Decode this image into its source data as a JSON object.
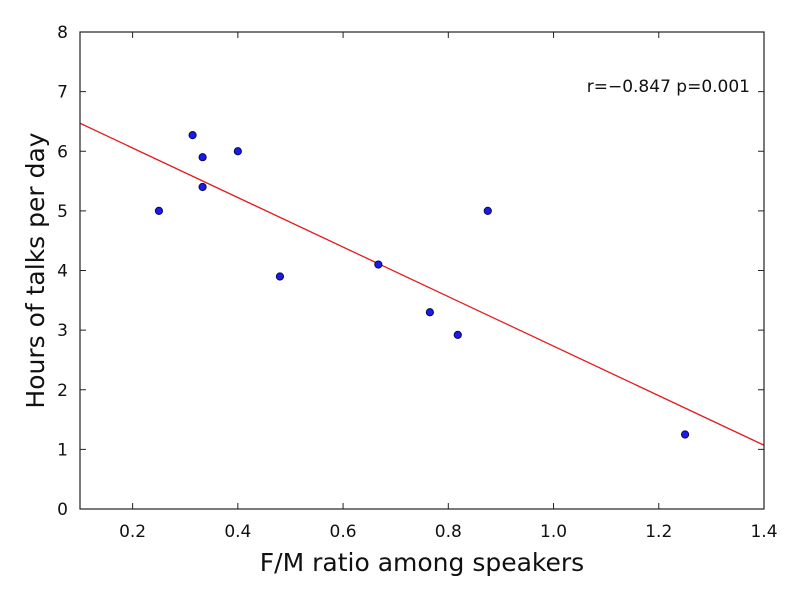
{
  "chart_data": {
    "type": "scatter",
    "title": "",
    "xlabel": "F/M ratio among speakers",
    "ylabel": "Hours of talks per day",
    "xlim": [
      0.1,
      1.4
    ],
    "ylim": [
      0,
      8
    ],
    "xticks": [
      0.2,
      0.4,
      0.6,
      0.8,
      1.0,
      1.2,
      1.4
    ],
    "xtick_labels": [
      "0.2",
      "0.4",
      "0.6",
      "0.8",
      "1.0",
      "1.2",
      "1.4"
    ],
    "yticks": [
      0,
      1,
      2,
      3,
      4,
      5,
      6,
      7,
      8
    ],
    "ytick_labels": [
      "0",
      "1",
      "2",
      "3",
      "4",
      "5",
      "6",
      "7",
      "8"
    ],
    "grid": false,
    "legend": "none",
    "series": [
      {
        "points": [
          {
            "x": 0.25,
            "y": 5.0
          },
          {
            "x": 0.314,
            "y": 6.27
          },
          {
            "x": 0.333,
            "y": 5.9
          },
          {
            "x": 0.333,
            "y": 5.4
          },
          {
            "x": 0.4,
            "y": 6.0
          },
          {
            "x": 0.48,
            "y": 3.9
          },
          {
            "x": 0.667,
            "y": 4.1
          },
          {
            "x": 0.765,
            "y": 3.3
          },
          {
            "x": 0.818,
            "y": 2.92
          },
          {
            "x": 0.875,
            "y": 5.0
          },
          {
            "x": 1.25,
            "y": 1.25
          }
        ],
        "marker_color": "#1a1aee",
        "marker_edge_color": "#0a0a50"
      }
    ],
    "fit_line": {
      "x": [
        0.1,
        1.4
      ],
      "y": [
        6.47,
        1.07
      ],
      "color": "#e41a1c"
    },
    "annotation": {
      "text": "r=−0.847  p=0.001",
      "position": "top-right"
    }
  }
}
